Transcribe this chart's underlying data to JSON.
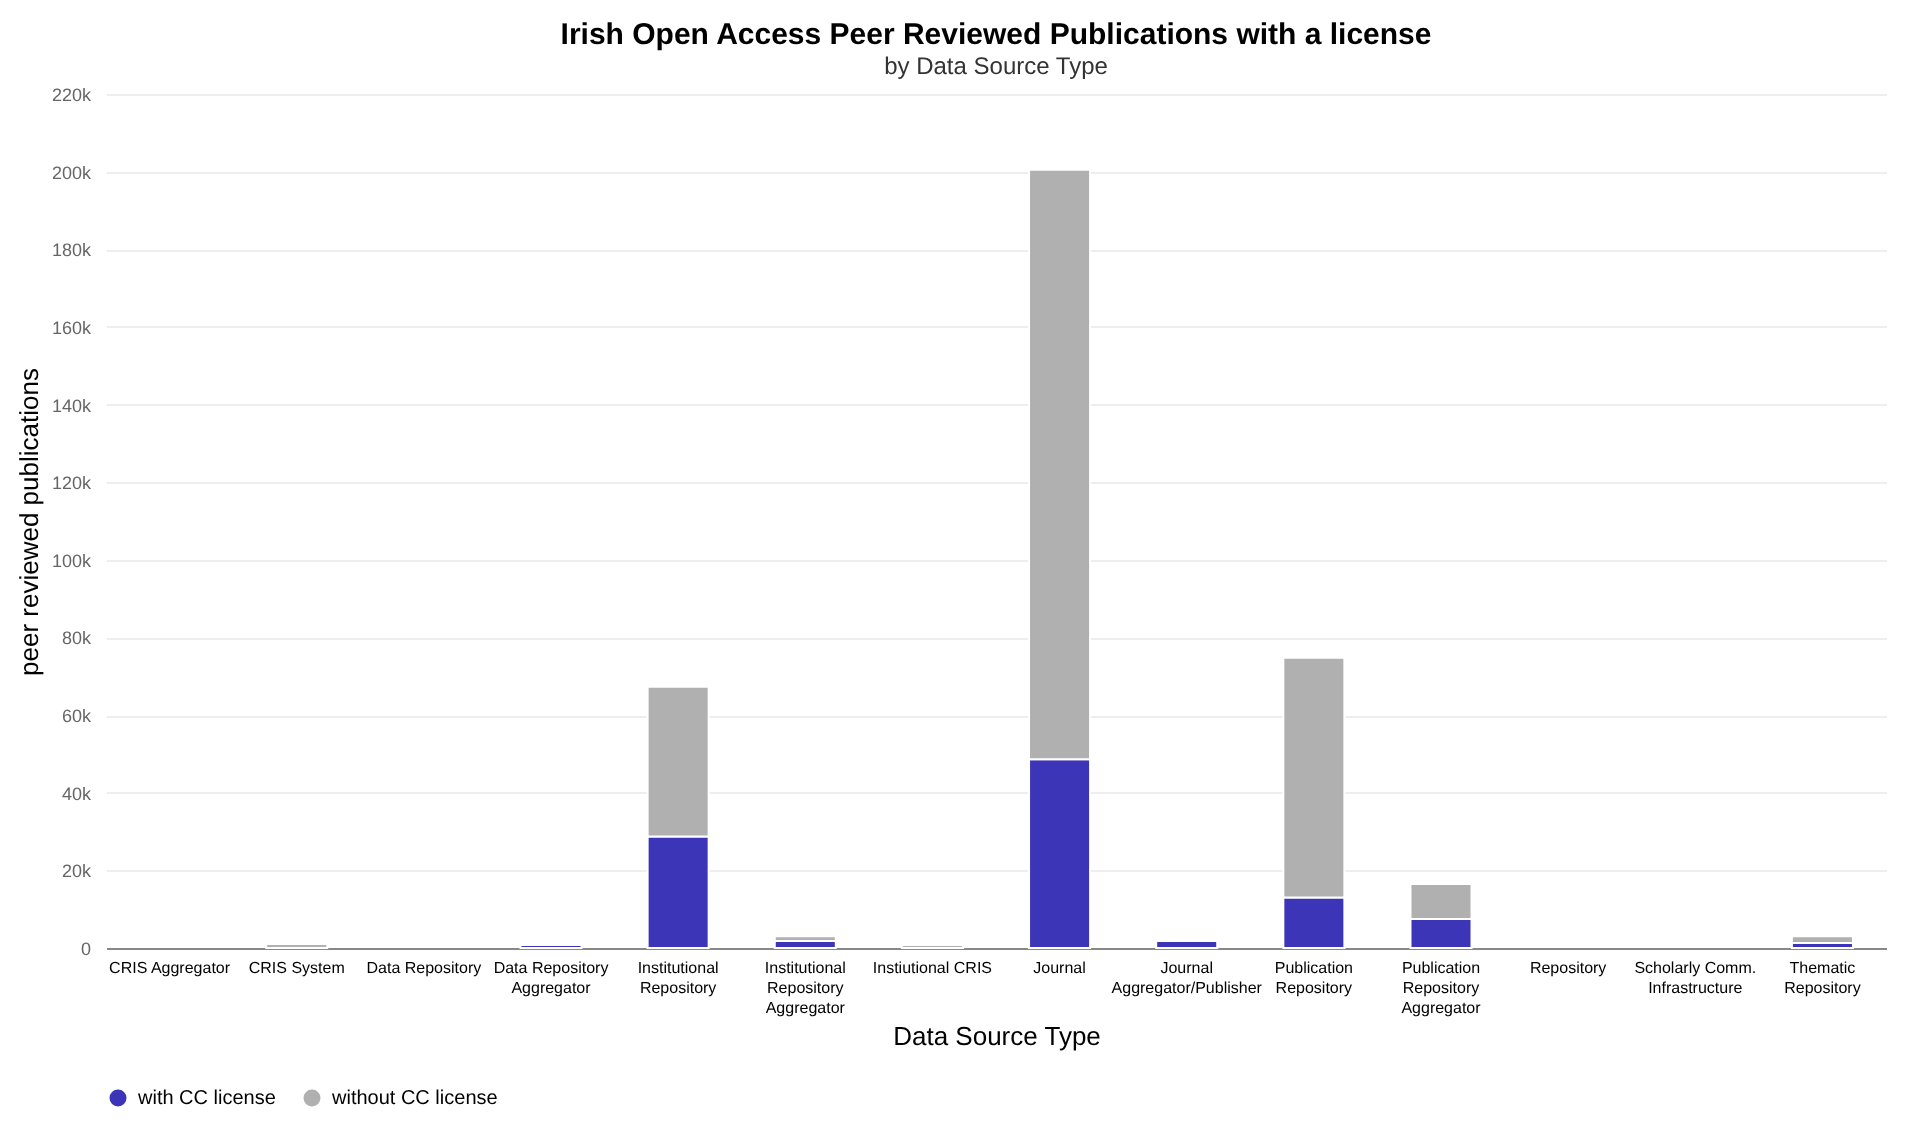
{
  "chart_data": {
    "type": "bar",
    "title": "Irish Open Access Peer Reviewed Publications with a license",
    "subtitle": "by Data Source Type",
    "xlabel": "Data Source Type",
    "ylabel": "peer reviewed publications",
    "categories": [
      "CRIS Aggregator",
      "CRIS System",
      "Data Repository",
      "Data Repository Aggregator",
      "Institutional Repository",
      "Institutional Repository Aggregator",
      "Instiutional CRIS",
      "Journal",
      "Journal Aggregator/Publisher",
      "Publication Repository",
      "Publication Repository Aggregator",
      "Repository",
      "Scholarly Comm. Infrastructure",
      "Thematic Repository"
    ],
    "series": [
      {
        "name": "with CC license",
        "color": "#3d35b8",
        "values": [
          0,
          null,
          0,
          800,
          28700,
          1800,
          null,
          48600,
          1800,
          13000,
          7500,
          0,
          0,
          1300
        ]
      },
      {
        "name": "without CC license",
        "color": "#b0b0b0",
        "values": [
          0,
          1000,
          0,
          0,
          38600,
          1200,
          800,
          151900,
          0,
          61800,
          9000,
          0,
          0,
          1700
        ]
      }
    ],
    "stacked": true,
    "ylim": [
      0,
      220000
    ],
    "yticks": [
      {
        "value": 0,
        "label": "0"
      },
      {
        "value": 20000,
        "label": "20k"
      },
      {
        "value": 40000,
        "label": "40k"
      },
      {
        "value": 60000,
        "label": "60k"
      },
      {
        "value": 80000,
        "label": "80k"
      },
      {
        "value": 100000,
        "label": "100k"
      },
      {
        "value": 120000,
        "label": "120k"
      },
      {
        "value": 140000,
        "label": "140k"
      },
      {
        "value": 160000,
        "label": "160k"
      },
      {
        "value": 180000,
        "label": "180k"
      },
      {
        "value": 200000,
        "label": "200k"
      },
      {
        "value": 220000,
        "label": "220k"
      }
    ],
    "grid": "y",
    "legend": "bottom"
  }
}
